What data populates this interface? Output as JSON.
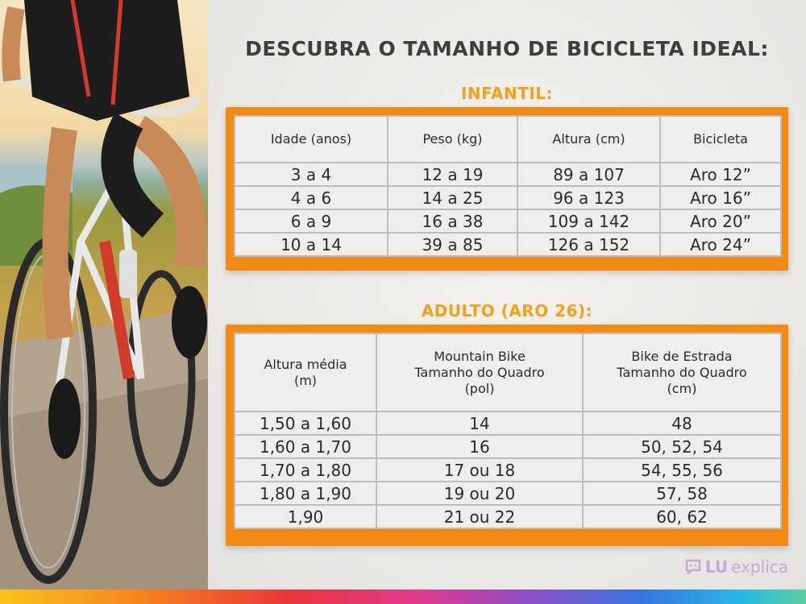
{
  "title": "DESCUBRA O TAMANHO DE BICICLETA IDEAL:",
  "infantil": {
    "title": "INFANTIL:",
    "headers": [
      "Idade (anos)",
      "Peso (kg)",
      "Altura (cm)",
      "Bicicleta"
    ],
    "rows": [
      [
        "3 a 4",
        "12 a 19",
        "89 a 107",
        "Aro 12”"
      ],
      [
        "4 a 6",
        "14 a 25",
        "96 a 123",
        "Aro 16”"
      ],
      [
        "6 a 9",
        "16 a 38",
        "109 a 142",
        "Aro 20”"
      ],
      [
        "10 a 14",
        "39 a 85",
        "126 a 152",
        "Aro 24”"
      ]
    ]
  },
  "adulto": {
    "title": "ADULTO (ARO 26):",
    "headers": [
      [
        "Altura média",
        "(m)"
      ],
      [
        "Mountain Bike",
        "Tamanho do Quadro",
        "(pol)"
      ],
      [
        "Bike de Estrada",
        "Tamanho do Quadro",
        "(cm)"
      ]
    ],
    "rows": [
      [
        "1,50 a 1,60",
        "14",
        "48"
      ],
      [
        "1,60 a 1,70",
        "16",
        "50, 52, 54"
      ],
      [
        "1,70 a 1,80",
        "17 ou 18",
        "54, 55, 56"
      ],
      [
        "1,80 a 1,90",
        "19 ou 20",
        "57, 58"
      ],
      [
        "1,90",
        "21 ou 22",
        "60, 62"
      ]
    ]
  },
  "brand": {
    "part1": "LU",
    "part2": "explica",
    "icon": "chat-bubble-icon"
  },
  "colors": {
    "accent": "#f28a14",
    "section_title": "#f4a11a",
    "text": "#2b2b2b"
  }
}
